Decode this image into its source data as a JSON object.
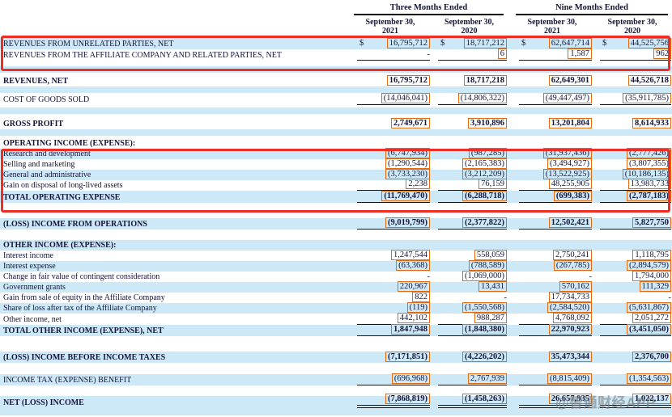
{
  "table": {
    "currency_symbol": "$",
    "col_groups": [
      {
        "label": "Three Months Ended"
      },
      {
        "label": "Nine Months Ended"
      }
    ],
    "col_headers": [
      {
        "line1": "September 30,",
        "line2": "2021"
      },
      {
        "line1": "September 30,",
        "line2": "2020"
      },
      {
        "line1": "September 30,",
        "line2": "2021"
      },
      {
        "line1": "September 30,",
        "line2": "2020"
      }
    ],
    "rows": [
      {
        "type": "data",
        "label": "REVENUES FROM UNRELATED PARTIES, NET",
        "bg": "blue",
        "bold": false,
        "dollar": true,
        "rule": "none",
        "h": 14,
        "values": [
          "16,795,712",
          "18,717,212",
          "62,647,714",
          "44,525,756"
        ]
      },
      {
        "type": "data",
        "label": "REVENUES FROM THE AFFILIATE COMPANY AND RELATED PARTIES, NET",
        "bg": "white",
        "bold": false,
        "dollar": false,
        "rule": "single",
        "h": 14,
        "values": [
          "-",
          "6",
          "1,587",
          "962"
        ]
      },
      {
        "type": "spacer",
        "bg": "white",
        "h": 7
      },
      {
        "type": "spacer",
        "bg": "blue",
        "h": 8
      },
      {
        "type": "spacer",
        "bg": "white",
        "h": 4
      },
      {
        "type": "data",
        "label": "REVENUES, NET",
        "bg": "white",
        "bold": true,
        "dollar": false,
        "rule": "none",
        "h": 13,
        "values": [
          "16,795,712",
          "18,717,218",
          "62,649,301",
          "44,526,718"
        ]
      },
      {
        "type": "spacer",
        "bg": "blue",
        "h": 8
      },
      {
        "type": "spacer",
        "bg": "white",
        "h": 2
      },
      {
        "type": "data",
        "label": "COST OF GOODS SOLD",
        "bg": "white",
        "bold": false,
        "dollar": false,
        "rule": "single",
        "h": 13,
        "values": [
          "(14,046,041)",
          "(14,806,322)",
          "(49,447,497)",
          "(35,911,785)"
        ]
      },
      {
        "type": "spacer",
        "bg": "white",
        "h": 3
      },
      {
        "type": "spacer",
        "bg": "blue",
        "h": 8
      },
      {
        "type": "spacer",
        "bg": "white",
        "h": 5
      },
      {
        "type": "data",
        "label": "GROSS PROFIT",
        "bg": "white",
        "bold": true,
        "dollar": false,
        "rule": "none",
        "h": 14,
        "values": [
          "2,749,671",
          "3,910,896",
          "13,201,804",
          "8,614,933"
        ]
      },
      {
        "type": "spacer",
        "bg": "blue",
        "h": 8
      },
      {
        "type": "spacer",
        "bg": "white",
        "h": 3
      },
      {
        "type": "data",
        "label": "OPERATING INCOME (EXPENSE):",
        "bg": "white",
        "bold": true,
        "dollar": false,
        "rule": "none",
        "h": 13,
        "values": [
          "",
          "",
          "",
          ""
        ]
      },
      {
        "type": "data",
        "label": "Research and development",
        "bg": "blue",
        "bold": false,
        "dollar": false,
        "rule": "none",
        "h": 13,
        "values": [
          "(6,747,934)",
          "(987,285)",
          "(31,937,436)",
          "(2,777,426)"
        ]
      },
      {
        "type": "data",
        "label": "Selling and marketing",
        "bg": "white",
        "bold": false,
        "dollar": false,
        "rule": "none",
        "h": 13,
        "values": [
          "(1,290,544)",
          "(2,165,383)",
          "(3,494,927)",
          "(3,807,355)"
        ]
      },
      {
        "type": "data",
        "label": "General and administrative",
        "bg": "blue",
        "bold": false,
        "dollar": false,
        "rule": "none",
        "h": 13,
        "values": [
          "(3,733,230)",
          "(3,212,209)",
          "(13,522,925)",
          "(10,186,135)"
        ]
      },
      {
        "type": "data",
        "label": "Gain on disposal of long-lived assets",
        "bg": "white",
        "bold": false,
        "dollar": false,
        "rule": "single",
        "h": 13,
        "values": [
          "2,238",
          "76,159",
          "48,255,905",
          "13,983,733"
        ]
      },
      {
        "type": "data",
        "label": "TOTAL OPERATING EXPENSE",
        "bg": "blue",
        "bold": true,
        "dollar": false,
        "rule": "single",
        "h": 15,
        "values": [
          "(11,769,470)",
          "(6,288,718)",
          "(699,383)",
          "(2,787,183)"
        ]
      },
      {
        "type": "spacer",
        "bg": "white",
        "h": 19
      },
      {
        "type": "data",
        "label": "(LOSS) INCOME FROM OPERATIONS",
        "bg": "blue",
        "bold": true,
        "dollar": false,
        "rule": "single",
        "h": 14,
        "values": [
          "(9,019,799)",
          "(2,377,822)",
          "12,502,421",
          "5,827,750"
        ]
      },
      {
        "type": "spacer",
        "bg": "white",
        "h": 13
      },
      {
        "type": "data",
        "label": "OTHER INCOME (EXPENSE):",
        "bg": "blue",
        "bold": true,
        "dollar": false,
        "rule": "none",
        "h": 13,
        "values": [
          "",
          "",
          "",
          ""
        ]
      },
      {
        "type": "data",
        "label": "Interest income",
        "bg": "white",
        "bold": false,
        "dollar": false,
        "rule": "none",
        "h": 13,
        "values": [
          "1,247,544",
          "558,059",
          "2,750,241",
          "1,118,795"
        ]
      },
      {
        "type": "data",
        "label": "Interest expense",
        "bg": "blue",
        "bold": false,
        "dollar": false,
        "rule": "none",
        "h": 13,
        "values": [
          "(63,368)",
          "(788,589)",
          "(267,785)",
          "(2,894,579)"
        ]
      },
      {
        "type": "data",
        "label": "Change in fair value of contingent consideration",
        "bg": "white",
        "bold": false,
        "dollar": false,
        "rule": "none",
        "h": 13,
        "values": [
          "-",
          "(1,069,000)",
          "-",
          "1,794,000"
        ]
      },
      {
        "type": "data",
        "label": "Government grants",
        "bg": "blue",
        "bold": false,
        "dollar": false,
        "rule": "none",
        "h": 13,
        "values": [
          "220,967",
          "13,431",
          "570,162",
          "111,329"
        ]
      },
      {
        "type": "data",
        "label": "Gain from sale of equity in the Affiliate Company",
        "bg": "white",
        "bold": false,
        "dollar": false,
        "rule": "none",
        "h": 13,
        "values": [
          "822",
          "-",
          "17,734,733",
          "-"
        ]
      },
      {
        "type": "data",
        "label": "Share of loss after tax of the Affiliate Company",
        "bg": "blue",
        "bold": false,
        "dollar": false,
        "rule": "none",
        "h": 13,
        "values": [
          "(119)",
          "(1,550,568)",
          "(2,584,520)",
          "(5,631,867)"
        ]
      },
      {
        "type": "data",
        "label": "Other income, net",
        "bg": "white",
        "bold": false,
        "dollar": false,
        "rule": "single",
        "h": 14,
        "values": [
          "442,102",
          "988,287",
          "4,768,092",
          "2,051,272"
        ]
      },
      {
        "type": "data",
        "label": "TOTAL OTHER INCOME (EXPENSE), NET",
        "bg": "blue",
        "bold": true,
        "dollar": false,
        "rule": "single",
        "h": 14,
        "values": [
          "1,847,948",
          "(1,848,380)",
          "22,970,923",
          "(3,451,050)"
        ]
      },
      {
        "type": "spacer",
        "bg": "white",
        "h": 19
      },
      {
        "type": "data",
        "label": "(LOSS) INCOME BEFORE INCOME TAXES",
        "bg": "blue",
        "bold": true,
        "dollar": false,
        "rule": "none",
        "h": 14,
        "values": [
          "(7,171,851)",
          "(4,226,202)",
          "35,473,344",
          "2,376,700"
        ]
      },
      {
        "type": "spacer",
        "bg": "white",
        "h": 14
      },
      {
        "type": "data",
        "label": "INCOME TAX (EXPENSE) BENEFIT",
        "bg": "blue",
        "bold": false,
        "dollar": false,
        "rule": "single",
        "h": 14,
        "values": [
          "(696,968)",
          "2,767,939",
          "(8,815,409)",
          "(1,354,563)"
        ]
      },
      {
        "type": "spacer",
        "bg": "white",
        "h": 13
      },
      {
        "type": "data",
        "label": "NET (LOSS) INCOME",
        "bg": "blue",
        "bold": true,
        "dollar": false,
        "rule": "double",
        "h": 15,
        "values": [
          "(7,868,819)",
          "(1,458,263)",
          "26,657,935",
          "1,022,137"
        ]
      },
      {
        "type": "spacer",
        "bg": "blue",
        "h": 9
      }
    ]
  },
  "annotations": {
    "red_boxes": [
      {
        "around": "revenue rows"
      },
      {
        "around": "operating expense rows"
      }
    ]
  },
  "watermark": {
    "text": "@智通财经APP"
  },
  "colors": {
    "stripe_blue": "#cde9f7",
    "highlight_orange": "#e4690f",
    "annotation_red": "#ee2d24",
    "rule_black": "#151515",
    "text": "#14143a",
    "watermark_gray": "#7d7d7d"
  }
}
